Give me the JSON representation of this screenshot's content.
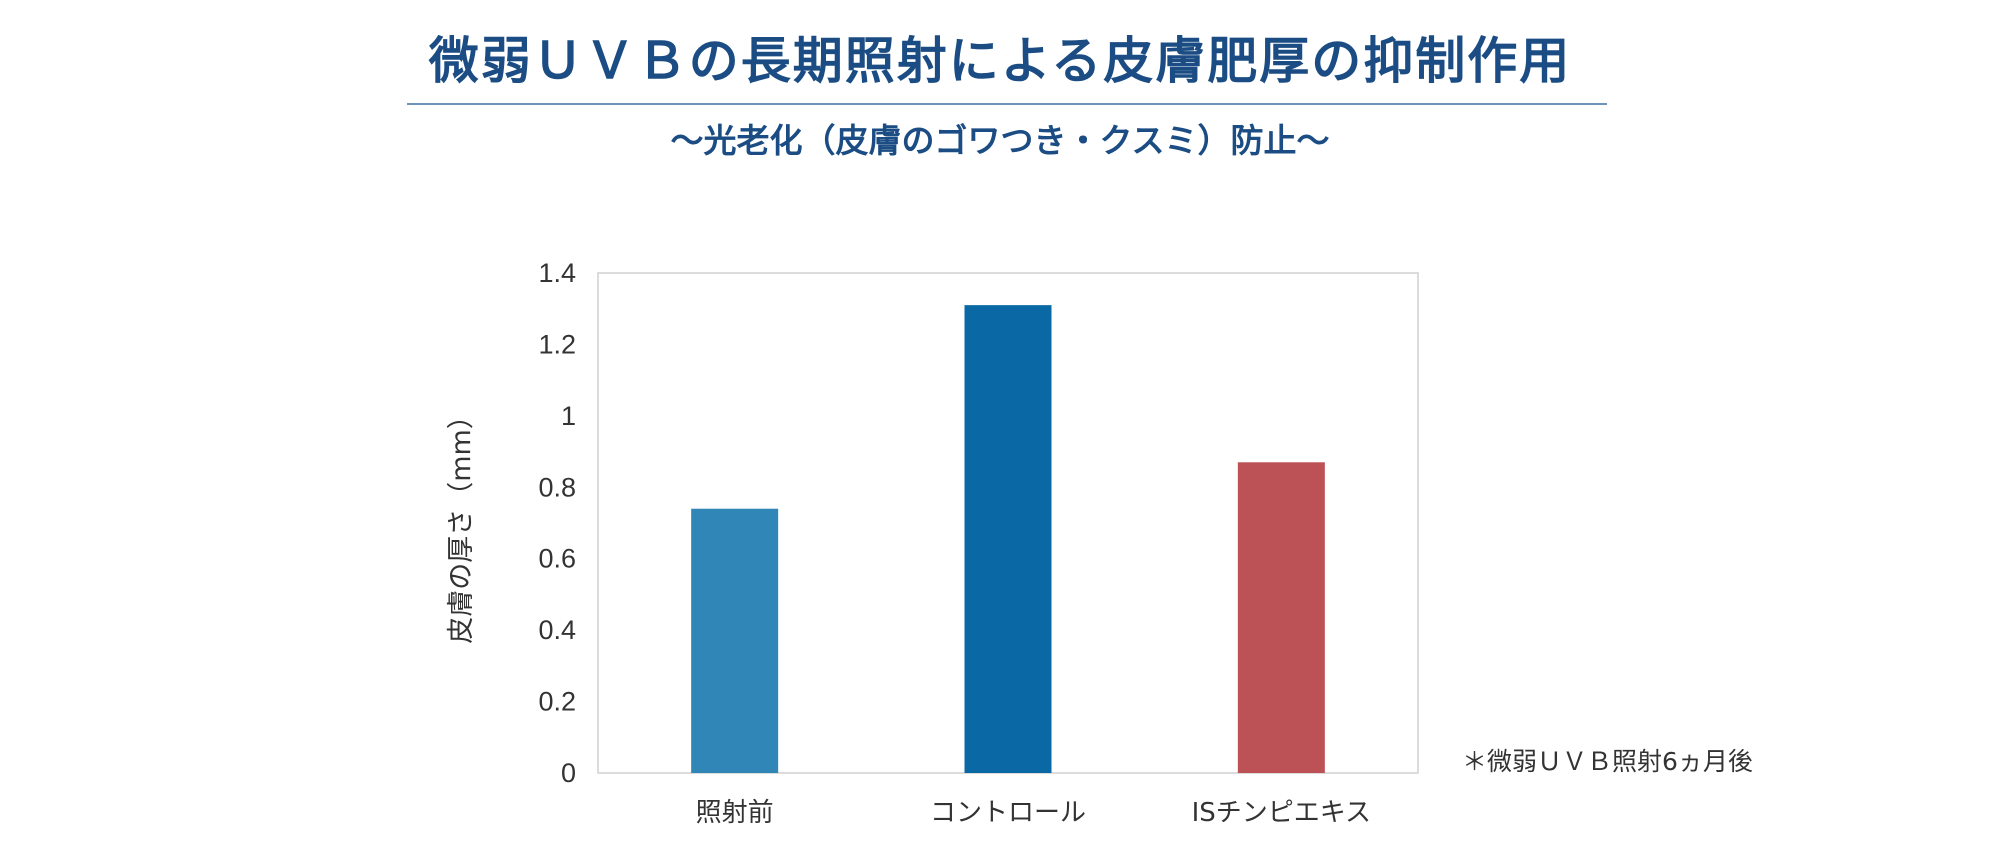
{
  "title": "微弱ＵＶＢの長期照射による皮膚肥厚の抑制作用",
  "subtitle": "～光老化（皮膚のゴワつき・クスミ）防止～",
  "note": "＊微弱ＵＶＢ照射6ヵ月後",
  "chart_data": {
    "type": "bar",
    "categories": [
      "照射前",
      "コントロール",
      "ISチンピエキス"
    ],
    "values": [
      0.74,
      1.31,
      0.87
    ],
    "colors": [
      "#3186b8",
      "#0a68a4",
      "#bd5256"
    ],
    "ylabel": "皮膚の厚さ（mm）",
    "xlabel": "",
    "ylim": [
      0,
      1.4
    ],
    "yticks": [
      0,
      0.2,
      0.4,
      0.6,
      0.8,
      1,
      1.2,
      1.4
    ],
    "ytick_labels": [
      "0",
      "0.2",
      "0.4",
      "0.6",
      "0.8",
      "1",
      "1.2",
      "1.4"
    ],
    "grid": false
  }
}
